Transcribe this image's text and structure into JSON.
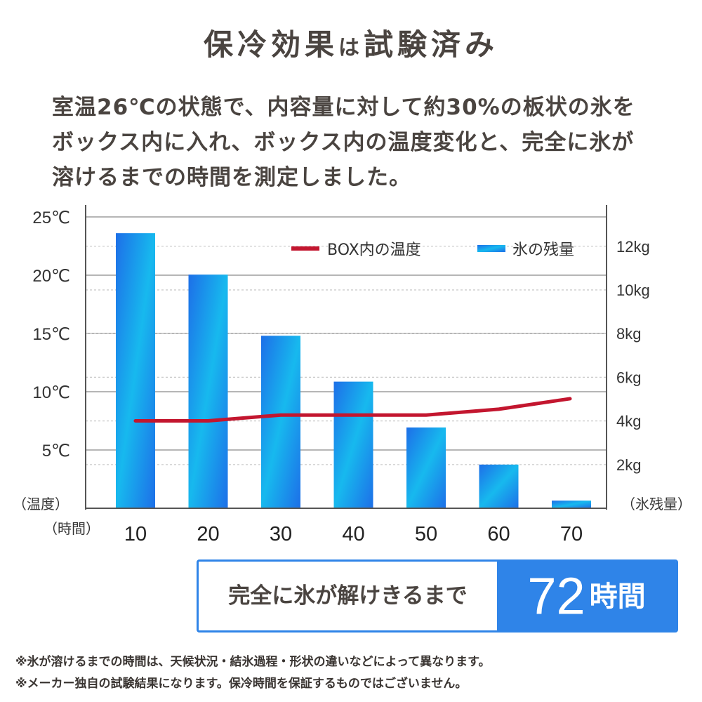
{
  "header": {
    "title_main": "保冷効果",
    "title_particle": "は",
    "title_end": "試験済み"
  },
  "description": {
    "lines": [
      "室温26℃の状態で、内容量に対して約30%の板状の氷を",
      "ボックス内に入れ、ボックス内の温度変化と、完全に氷が",
      "溶けるまでの時間を測定しました。"
    ]
  },
  "chart_data": {
    "type": "bar",
    "categories": [
      "10",
      "20",
      "30",
      "40",
      "50",
      "60",
      "70"
    ],
    "xlabel": "（時間）",
    "series": [
      {
        "name": "氷の残量",
        "type": "bar",
        "axis": "right",
        "values": [
          12.6,
          10.7,
          7.9,
          5.8,
          3.7,
          2.0,
          0.35
        ]
      },
      {
        "name": "BOX内の温度",
        "type": "line",
        "axis": "left",
        "values": [
          7.5,
          7.5,
          8.0,
          8.0,
          8.0,
          8.5,
          9.4
        ]
      }
    ],
    "left_axis": {
      "label": "（温度）",
      "ticks": [
        "5℃",
        "10℃",
        "15℃",
        "20℃",
        "25℃"
      ],
      "tick_values": [
        5,
        10,
        15,
        20,
        25
      ]
    },
    "right_axis": {
      "label": "（氷残量）",
      "ticks": [
        "2kg",
        "4kg",
        "6kg",
        "8kg",
        "10kg",
        "12kg"
      ],
      "tick_values": [
        2,
        4,
        6,
        8,
        10,
        12
      ]
    },
    "legend_position": "top-right",
    "grid": true,
    "colors": {
      "line": "#c3162f",
      "bar_top": "#1d6fe8",
      "bar_mid": "#17b9ee",
      "grid": "#c8c8c8",
      "axis": "#555555"
    }
  },
  "result": {
    "label": "完全に氷が解けきるまで",
    "value": "72",
    "unit": "時間"
  },
  "notes": [
    "※氷が溶けるまでの時間は、天候状況・結氷過程・形状の違いなどによって異なります。",
    "※メーカー独自の試験結果になります。保冷時間を保証するものではございません。"
  ]
}
